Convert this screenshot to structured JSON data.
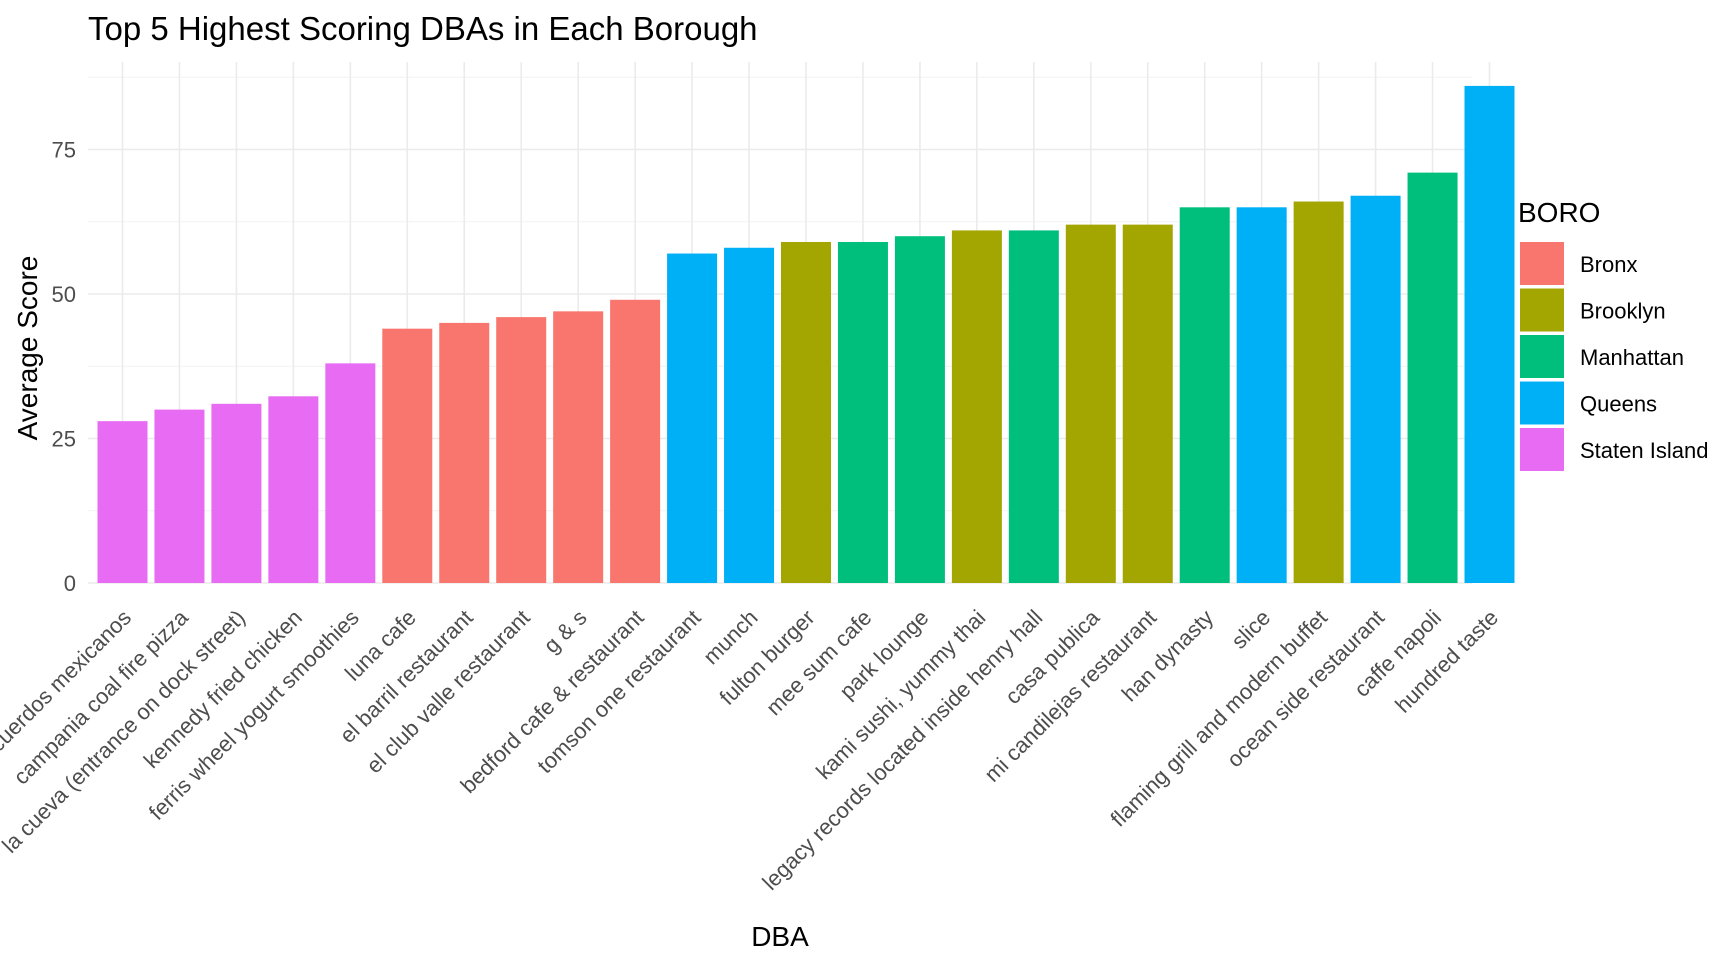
{
  "chart_data": {
    "type": "bar",
    "title": "Top 5 Highest Scoring DBAs in Each Borough",
    "xlabel": "DBA",
    "ylabel": "Average Score",
    "ylim": [
      0,
      88
    ],
    "yticks": [
      0,
      25,
      50,
      75
    ],
    "legend_title": "BORO",
    "legend_position": "right",
    "legend": [
      {
        "name": "Bronx",
        "color": "#F8766D"
      },
      {
        "name": "Brooklyn",
        "color": "#A3A500"
      },
      {
        "name": "Manhattan",
        "color": "#00BF7D"
      },
      {
        "name": "Queens",
        "color": "#00B0F6"
      },
      {
        "name": "Staten Island",
        "color": "#E76BF3"
      }
    ],
    "bars": [
      {
        "category": "recuerdos mexicanos",
        "value": 28,
        "boro": "Staten Island"
      },
      {
        "category": "campania coal fire pizza",
        "value": 30,
        "boro": "Staten Island"
      },
      {
        "category": "la cueva (entrance on dock street)",
        "value": 31,
        "boro": "Staten Island"
      },
      {
        "category": "kennedy fried chicken",
        "value": 32.3,
        "boro": "Staten Island"
      },
      {
        "category": "ferris wheel yogurt smoothies",
        "value": 38,
        "boro": "Staten Island"
      },
      {
        "category": "luna cafe",
        "value": 44,
        "boro": "Bronx"
      },
      {
        "category": "el barril restaurant",
        "value": 45,
        "boro": "Bronx"
      },
      {
        "category": "el club valle restaurant",
        "value": 46,
        "boro": "Bronx"
      },
      {
        "category": "g & s",
        "value": 47,
        "boro": "Bronx"
      },
      {
        "category": "bedford cafe & restaurant",
        "value": 49,
        "boro": "Bronx"
      },
      {
        "category": "tomson one restaurant",
        "value": 57,
        "boro": "Queens"
      },
      {
        "category": "munch",
        "value": 58,
        "boro": "Queens"
      },
      {
        "category": "fulton burger",
        "value": 59,
        "boro": "Brooklyn"
      },
      {
        "category": "mee sum cafe",
        "value": 59,
        "boro": "Manhattan"
      },
      {
        "category": "park lounge",
        "value": 60,
        "boro": "Manhattan"
      },
      {
        "category": "kami sushi, yummy thai",
        "value": 61,
        "boro": "Brooklyn"
      },
      {
        "category": "legacy records located inside henry hall",
        "value": 61,
        "boro": "Manhattan"
      },
      {
        "category": "casa publica",
        "value": 62,
        "boro": "Brooklyn"
      },
      {
        "category": "mi candilejas restaurant",
        "value": 62,
        "boro": "Brooklyn"
      },
      {
        "category": "han dynasty",
        "value": 65,
        "boro": "Manhattan"
      },
      {
        "category": "slice",
        "value": 65,
        "boro": "Queens"
      },
      {
        "category": "flaming grill and modern buffet",
        "value": 66,
        "boro": "Brooklyn"
      },
      {
        "category": "ocean side restaurant",
        "value": 67,
        "boro": "Queens"
      },
      {
        "category": "caffe napoli",
        "value": 71,
        "boro": "Manhattan"
      },
      {
        "category": "hundred taste",
        "value": 86,
        "boro": "Queens"
      }
    ]
  }
}
